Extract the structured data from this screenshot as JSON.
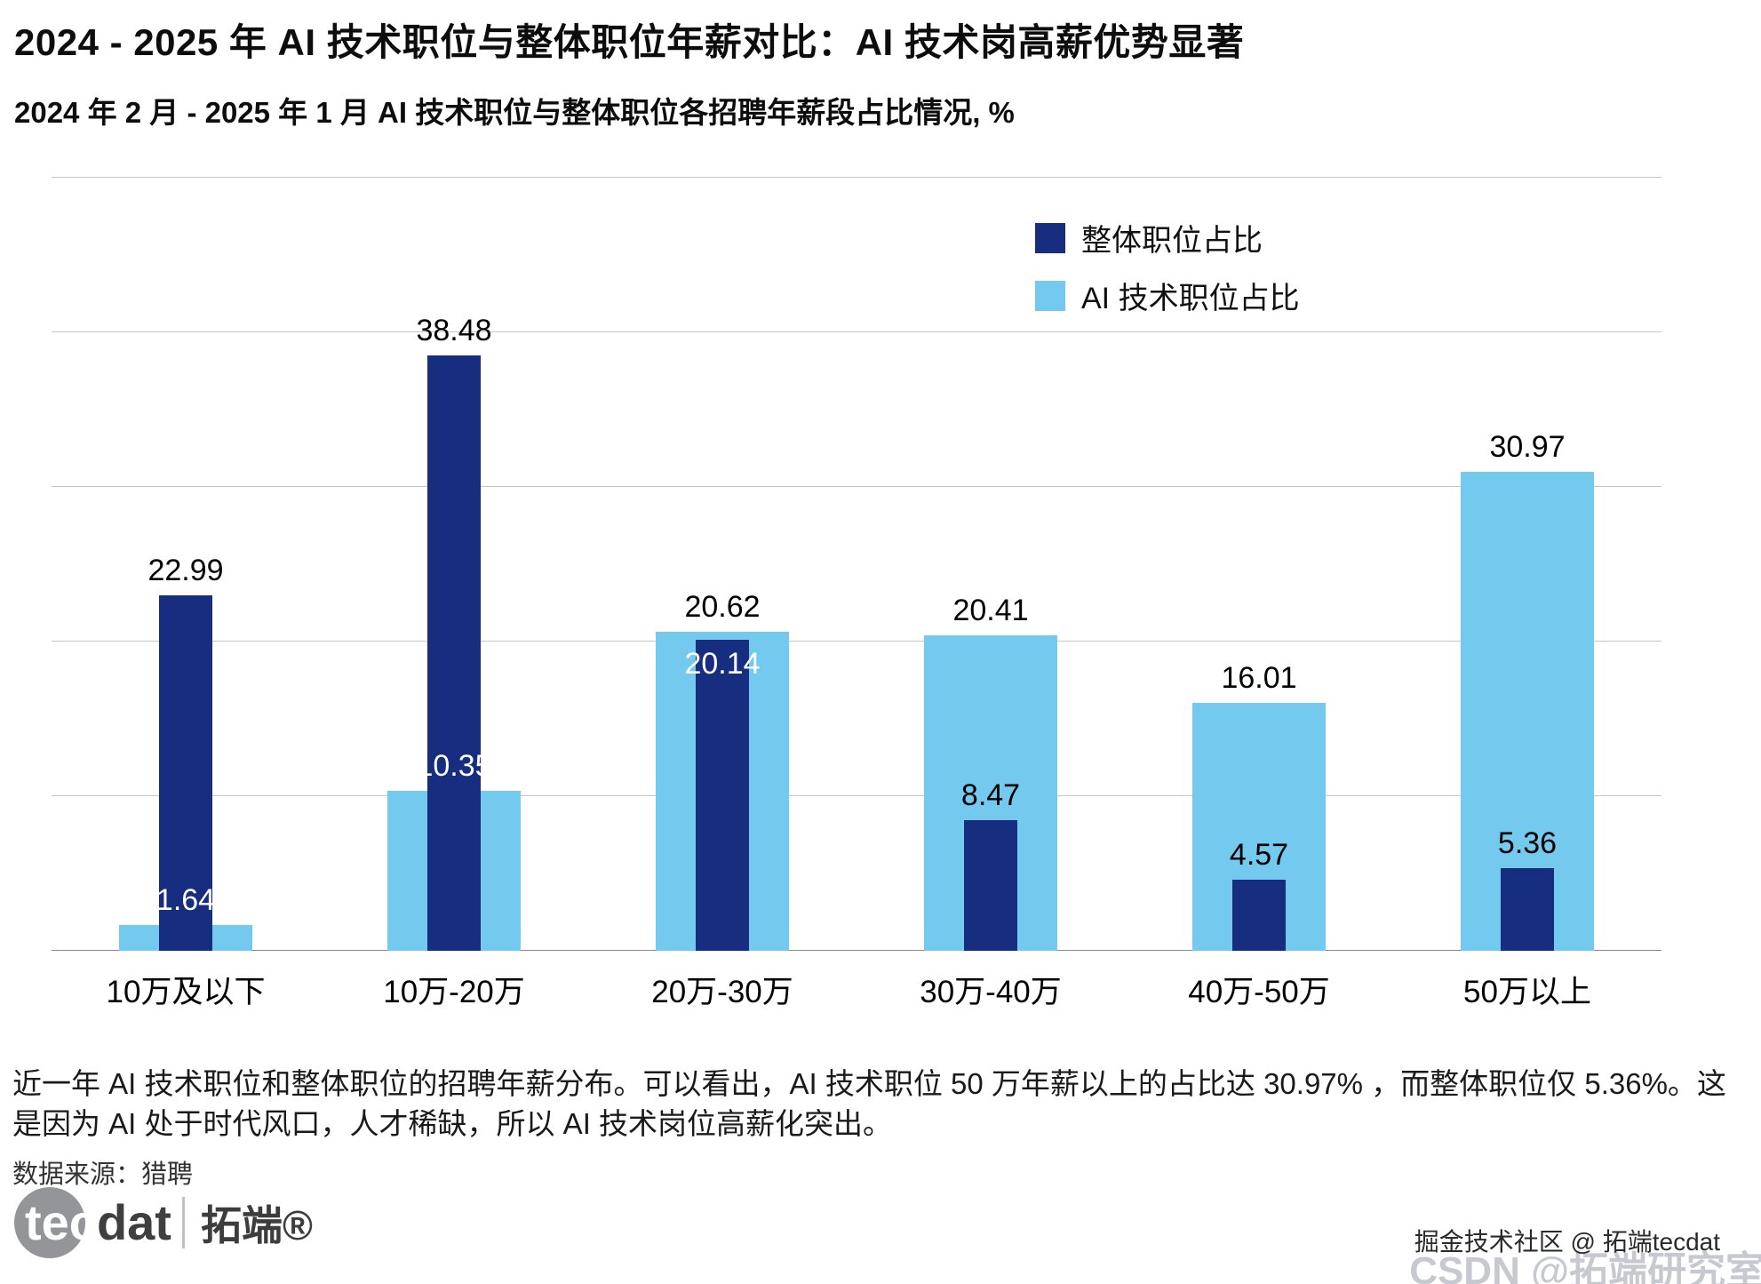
{
  "header": {
    "title": "2024 - 2025 年 AI 技术职位与整体职位年薪对比：AI 技术岗高薪优势显著",
    "subtitle": "2024 年 2 月 - 2025 年 1 月 AI 技术职位与整体职位各招聘年薪段占比情况, %"
  },
  "chart_data": {
    "type": "bar",
    "categories": [
      "10万及以下",
      "10万-20万",
      "20万-30万",
      "30万-40万",
      "40万-50万",
      "50万以上"
    ],
    "series": [
      {
        "name": "整体职位占比",
        "color": "#162d80",
        "values": [
          22.99,
          38.48,
          20.14,
          8.47,
          4.57,
          5.36
        ]
      },
      {
        "name": "AI 技术职位占比",
        "color": "#74c9ef",
        "values": [
          1.64,
          10.35,
          20.62,
          20.41,
          16.01,
          30.97
        ]
      }
    ],
    "unit": "%",
    "ylim": [
      0,
      50
    ],
    "grid_step": 10,
    "grid": true,
    "legend_position": "top-right"
  },
  "footer": {
    "note": "近一年 AI 技术职位和整体职位的招聘年薪分布。可以看出，AI 技术职位 50 万年薪以上的占比达 30.97% ，而整体职位仅 5.36%。这是因为 AI 处于时代风口，人才稀缺，所以 AI 技术岗位高薪化突出。",
    "source": "数据来源：猎聘"
  },
  "logo": {
    "part1": "tec",
    "part2": "dat",
    "brand": "拓端®"
  },
  "watermark": {
    "line1": "掘金技术社区 @ 拓端tecdat",
    "line2": "CSDN @拓端研究室"
  }
}
